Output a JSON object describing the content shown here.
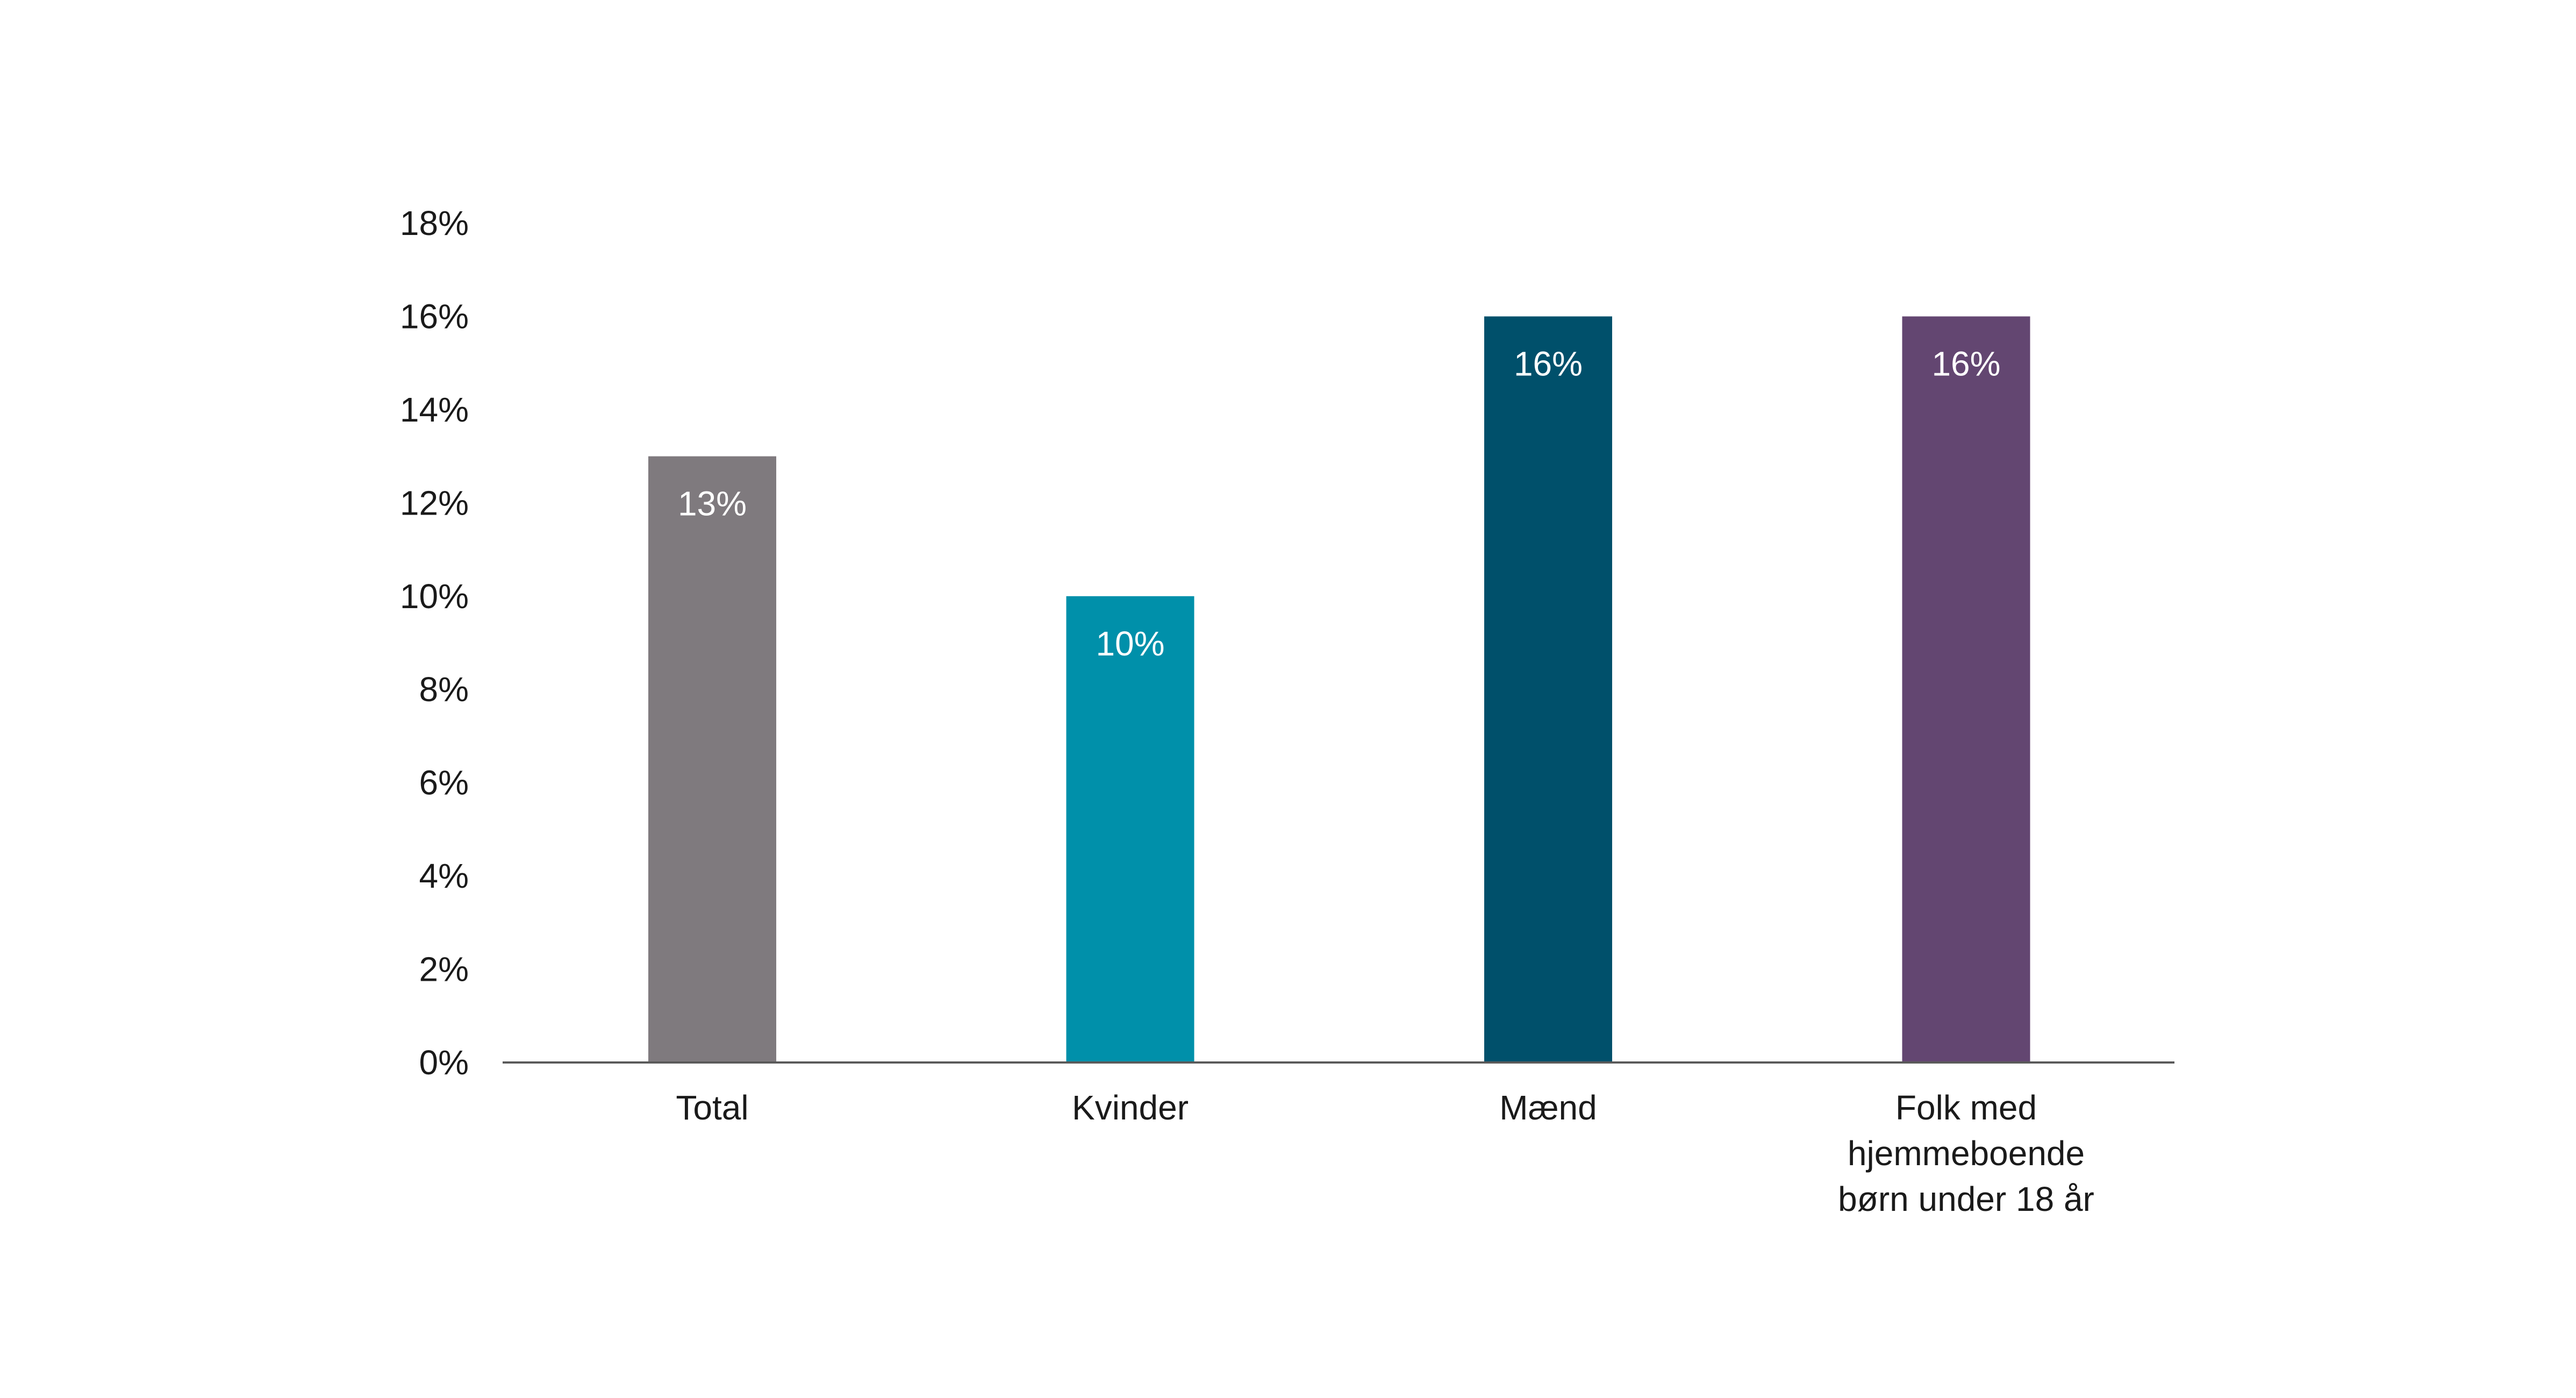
{
  "chart_data": {
    "type": "bar",
    "categories": [
      [
        "Total"
      ],
      [
        "Kvinder"
      ],
      [
        "Mænd"
      ],
      [
        "Folk med",
        "hjemmeboende",
        "børn under 18 år"
      ]
    ],
    "values": [
      13,
      10,
      16,
      16
    ],
    "value_labels": [
      "13%",
      "10%",
      "16%",
      "16%"
    ],
    "colors": [
      "#7f7a7e",
      "#0090aa",
      "#00506b",
      "#634671"
    ],
    "ylim": [
      0,
      18
    ],
    "yticks": [
      0,
      2,
      4,
      6,
      8,
      10,
      12,
      14,
      16,
      18
    ],
    "ytick_labels": [
      "0%",
      "2%",
      "4%",
      "6%",
      "8%",
      "10%",
      "12%",
      "14%",
      "16%",
      "18%"
    ],
    "grid": false,
    "legend": false
  }
}
